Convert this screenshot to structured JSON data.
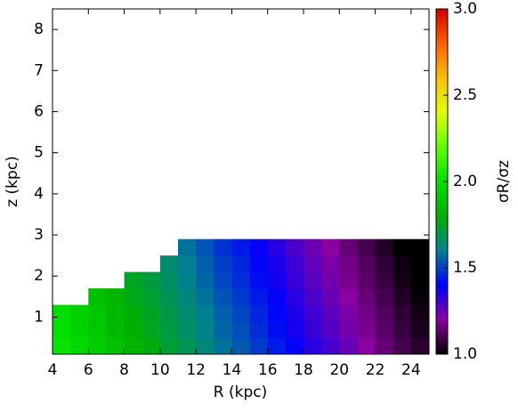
{
  "chart_data": {
    "type": "heatmap",
    "xlabel": "R (kpc)",
    "ylabel": "z (kpc)",
    "colorbar_label": "σR/σz",
    "xlim": [
      4,
      25
    ],
    "xticks": [
      4,
      6,
      8,
      10,
      12,
      14,
      16,
      18,
      20,
      22,
      24
    ],
    "ylim": [
      0.1,
      8.5
    ],
    "yticks": [
      1,
      2,
      3,
      4,
      5,
      6,
      7,
      8
    ],
    "clim": [
      1.0,
      3.0
    ],
    "cticks": [
      {
        "value": 1.0,
        "label": "1.0"
      },
      {
        "value": 1.5,
        "label": "1.5"
      },
      {
        "value": 2.0,
        "label": "2.0"
      },
      {
        "value": 2.5,
        "label": "2.5"
      },
      {
        "value": 3.0,
        "label": "3.0"
      }
    ],
    "colormap": [
      "#000000",
      "#8a00a0",
      "#0000ff",
      "#008090",
      "#00b000",
      "#00e000",
      "#60ff00",
      "#e0ff00",
      "#ffc000",
      "#ff6000",
      "#d00000"
    ],
    "x_edges": [
      4,
      5,
      6,
      7,
      8,
      9,
      10,
      11,
      12,
      13,
      14,
      15,
      16,
      17,
      18,
      19,
      20,
      21,
      22,
      23,
      24,
      25
    ],
    "y_edges": [
      0.1,
      0.5,
      0.9,
      1.3,
      1.7,
      2.1,
      2.5,
      2.9
    ],
    "z": [
      [
        2.02,
        1.97,
        1.92,
        1.87,
        1.82,
        1.78,
        1.73,
        1.68,
        1.63,
        1.58,
        1.54,
        1.49,
        1.44,
        1.39,
        1.34,
        1.3,
        1.25,
        1.2,
        1.15,
        1.1,
        1.06
      ],
      [
        2.0,
        1.95,
        1.9,
        1.85,
        1.8,
        1.76,
        1.71,
        1.66,
        1.61,
        1.56,
        1.52,
        1.47,
        1.42,
        1.37,
        1.32,
        1.28,
        1.23,
        1.18,
        1.13,
        1.08,
        1.04
      ],
      [
        1.99,
        1.94,
        1.89,
        1.84,
        1.79,
        1.75,
        1.7,
        1.65,
        1.6,
        1.55,
        1.51,
        1.46,
        1.41,
        1.36,
        1.31,
        1.27,
        1.22,
        1.17,
        1.12,
        1.07,
        1.03
      ],
      [
        null,
        null,
        1.87,
        1.82,
        1.77,
        1.73,
        1.68,
        1.63,
        1.58,
        1.53,
        1.49,
        1.44,
        1.39,
        1.34,
        1.29,
        1.25,
        1.2,
        1.15,
        1.1,
        1.05,
        1.01
      ],
      [
        null,
        null,
        null,
        null,
        1.75,
        1.71,
        1.66,
        1.61,
        1.56,
        1.51,
        1.47,
        1.42,
        1.37,
        1.32,
        1.27,
        1.23,
        1.18,
        1.13,
        1.08,
        1.03,
        0.99
      ],
      [
        null,
        null,
        null,
        null,
        null,
        null,
        1.65,
        1.6,
        1.55,
        1.5,
        1.46,
        1.41,
        1.36,
        1.31,
        1.26,
        1.22,
        1.17,
        1.12,
        1.07,
        1.02,
        0.98
      ],
      [
        null,
        null,
        null,
        null,
        null,
        null,
        null,
        1.58,
        1.53,
        1.48,
        1.44,
        1.39,
        1.34,
        1.29,
        1.24,
        1.2,
        1.15,
        1.1,
        1.05,
        1.0,
        0.96
      ]
    ]
  }
}
